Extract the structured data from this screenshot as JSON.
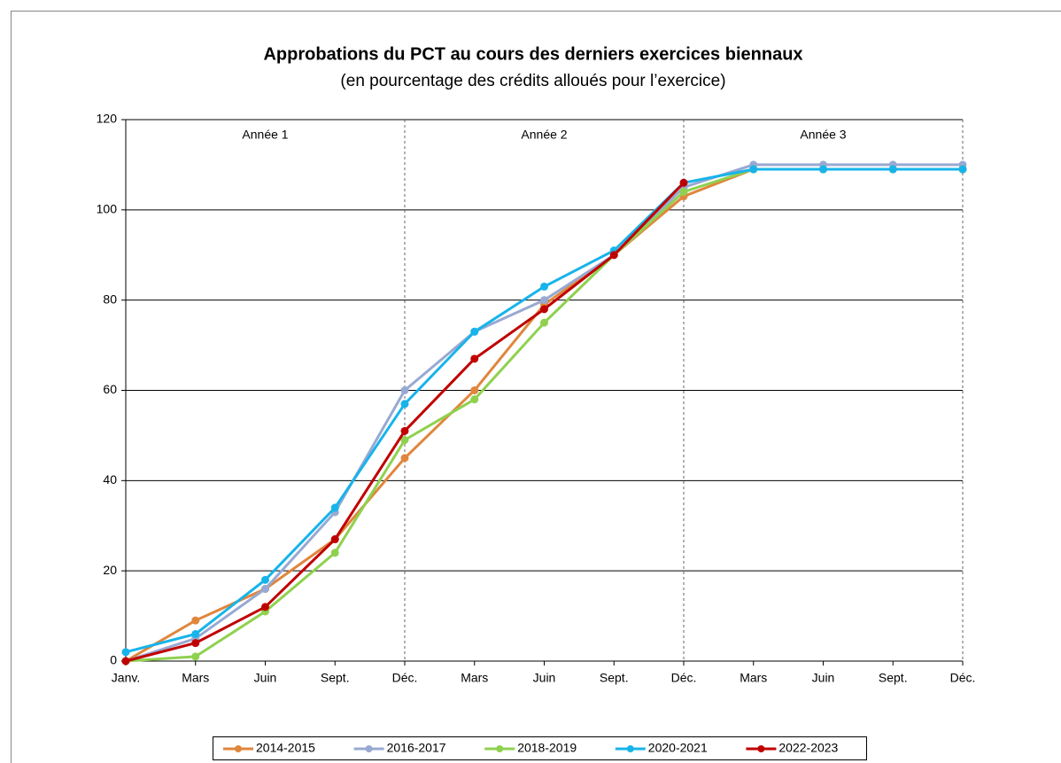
{
  "chart_data": {
    "type": "line",
    "title": "Approbations du PCT au cours des derniers exercices biennaux",
    "subtitle": "(en pourcentage des crédits alloués pour l’exercice)",
    "annotations": [
      "Année 1",
      "Année 2",
      "Année 3"
    ],
    "categories": [
      "Janv.",
      "Mars",
      "Juin",
      "Sept.",
      "Déc.",
      "Mars",
      "Juin",
      "Sept.",
      "Déc.",
      "Mars",
      "Juin",
      "Sept.",
      "Déc."
    ],
    "series": [
      {
        "name": "2014-2015",
        "color": "#e0863c",
        "values": [
          0,
          9,
          16,
          27,
          45,
          60,
          79,
          90,
          103,
          109,
          109,
          109,
          109
        ]
      },
      {
        "name": "2016-2017",
        "color": "#98a9d2",
        "values": [
          0,
          5,
          16,
          33,
          60,
          73,
          80,
          90,
          105,
          110,
          110,
          110,
          110
        ]
      },
      {
        "name": "2018-2019",
        "color": "#8fd14f",
        "values": [
          0,
          1,
          11,
          24,
          49,
          58,
          75,
          90,
          104,
          109,
          109,
          109,
          109
        ]
      },
      {
        "name": "2020-2021",
        "color": "#17b4ea",
        "values": [
          2,
          6,
          18,
          34,
          57,
          73,
          83,
          91,
          106,
          109,
          109,
          109,
          109
        ]
      },
      {
        "name": "2022-2023",
        "color": "#c00000",
        "values": [
          0,
          4,
          12,
          27,
          51,
          67,
          78,
          90,
          106,
          null,
          null,
          null,
          null
        ]
      }
    ],
    "ylim": [
      0,
      120
    ],
    "yticks": [
      0,
      20,
      40,
      60,
      80,
      100,
      120
    ],
    "grid": true,
    "legend": "bottom"
  }
}
